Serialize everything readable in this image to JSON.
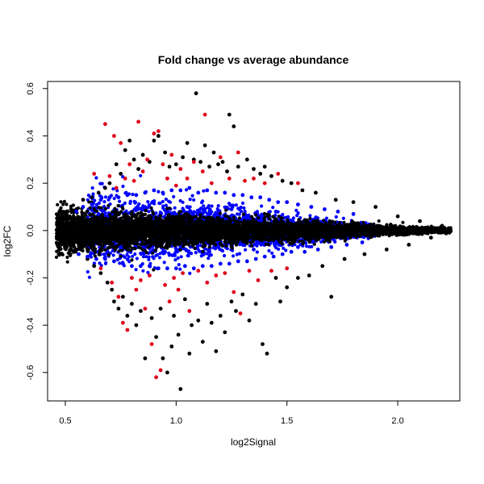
{
  "chart_data": {
    "type": "scatter",
    "title": "Fold change vs average abundance",
    "xlabel": "log2Signal",
    "ylabel": "log2FC",
    "xlim": [
      0.42,
      2.28
    ],
    "ylim": [
      -0.72,
      0.63
    ],
    "xticks": [
      0.5,
      1.0,
      1.5,
      2.0
    ],
    "xtick_labels": [
      "0.5",
      "1.0",
      "1.5",
      "2.0"
    ],
    "yticks": [
      -0.6,
      -0.4,
      -0.2,
      0.0,
      0.2,
      0.4,
      0.6
    ],
    "ytick_labels": [
      "-0.6",
      "-0.4",
      "-0.2",
      "0.0",
      "0.2",
      "0.4",
      "0.6"
    ],
    "grid": false,
    "legend": "none",
    "series": [
      {
        "color": "#000000",
        "points": [
          [
            0.47,
            0.01
          ],
          [
            0.48,
            -0.02
          ],
          [
            0.49,
            0.03
          ],
          [
            0.5,
            -0.04
          ],
          [
            0.52,
            0.06
          ],
          [
            0.54,
            -0.07
          ],
          [
            0.55,
            0.09
          ],
          [
            0.57,
            -0.08
          ],
          [
            0.58,
            0.13
          ],
          [
            0.6,
            -0.12
          ],
          [
            0.62,
            0.14
          ],
          [
            0.63,
            -0.15
          ],
          [
            0.65,
            0.16
          ],
          [
            0.66,
            -0.18
          ],
          [
            0.68,
            0.18
          ],
          [
            0.69,
            -0.22
          ],
          [
            0.7,
            0.2
          ],
          [
            0.71,
            -0.25
          ],
          [
            0.72,
            -0.3
          ],
          [
            0.73,
            0.28
          ],
          [
            0.74,
            -0.33
          ],
          [
            0.75,
            0.24
          ],
          [
            0.76,
            -0.28
          ],
          [
            0.77,
            0.34
          ],
          [
            0.78,
            -0.36
          ],
          [
            0.79,
            0.38
          ],
          [
            0.8,
            -0.31
          ],
          [
            0.81,
            0.3
          ],
          [
            0.82,
            -0.4
          ],
          [
            0.83,
            0.26
          ],
          [
            0.84,
            -0.34
          ],
          [
            0.85,
            0.32
          ],
          [
            0.86,
            -0.54
          ],
          [
            0.88,
            0.29
          ],
          [
            0.89,
            -0.37
          ],
          [
            0.9,
            0.38
          ],
          [
            0.91,
            -0.45
          ],
          [
            0.92,
            0.4
          ],
          [
            0.93,
            -0.33
          ],
          [
            0.94,
            -0.54
          ],
          [
            0.95,
            0.33
          ],
          [
            0.96,
            -0.6
          ],
          [
            0.97,
            0.27
          ],
          [
            0.98,
            -0.49
          ],
          [
            0.99,
            -0.36
          ],
          [
            1.0,
            0.28
          ],
          [
            1.01,
            -0.44
          ],
          [
            1.02,
            -0.67
          ],
          [
            1.03,
            0.31
          ],
          [
            1.04,
            -0.29
          ],
          [
            1.05,
            0.37
          ],
          [
            1.06,
            -0.52
          ],
          [
            1.07,
            -0.4
          ],
          [
            1.08,
            0.3
          ],
          [
            1.09,
            0.58
          ],
          [
            1.1,
            -0.38
          ],
          [
            1.11,
            0.29
          ],
          [
            1.12,
            -0.47
          ],
          [
            1.13,
            0.36
          ],
          [
            1.14,
            -0.31
          ],
          [
            1.15,
            0.27
          ],
          [
            1.16,
            -0.39
          ],
          [
            1.17,
            0.33
          ],
          [
            1.18,
            -0.51
          ],
          [
            1.19,
            0.28
          ],
          [
            1.2,
            -0.36
          ],
          [
            1.21,
            0.29
          ],
          [
            1.22,
            -0.43
          ],
          [
            1.23,
            0.25
          ],
          [
            1.24,
            0.49
          ],
          [
            1.25,
            -0.3
          ],
          [
            1.26,
            0.44
          ],
          [
            1.27,
            -0.34
          ],
          [
            1.28,
            0.27
          ],
          [
            1.3,
            -0.27
          ],
          [
            1.32,
            0.3
          ],
          [
            1.33,
            -0.38
          ],
          [
            1.35,
            0.26
          ],
          [
            1.36,
            -0.31
          ],
          [
            1.38,
            0.24
          ],
          [
            1.39,
            -0.48
          ],
          [
            1.4,
            0.27
          ],
          [
            1.41,
            -0.52
          ],
          [
            1.43,
            0.23
          ],
          [
            1.45,
            -0.2
          ],
          [
            1.47,
            -0.3
          ],
          [
            1.48,
            0.21
          ],
          [
            1.5,
            -0.24
          ],
          [
            1.52,
            0.2
          ],
          [
            1.55,
            -0.2
          ],
          [
            1.57,
            0.17
          ],
          [
            1.6,
            -0.19
          ],
          [
            1.63,
            0.16
          ],
          [
            1.66,
            -0.15
          ],
          [
            1.7,
            -0.28
          ],
          [
            1.72,
            0.13
          ],
          [
            1.76,
            -0.12
          ],
          [
            1.8,
            0.12
          ],
          [
            1.85,
            -0.1
          ],
          [
            1.9,
            0.1
          ],
          [
            1.95,
            -0.08
          ],
          [
            2.0,
            0.06
          ],
          [
            2.05,
            -0.06
          ],
          [
            2.1,
            0.04
          ],
          [
            2.15,
            -0.03
          ],
          [
            2.2,
            0.02
          ],
          [
            2.23,
            0.01
          ]
        ]
      },
      {
        "color": "#0000ff",
        "points": [
          [
            0.55,
            0.08
          ],
          [
            0.56,
            -0.1
          ],
          [
            0.58,
            0.1
          ],
          [
            0.6,
            -0.11
          ],
          [
            0.62,
            0.11
          ],
          [
            0.64,
            -0.12
          ],
          [
            0.66,
            0.13
          ],
          [
            0.68,
            -0.12
          ],
          [
            0.7,
            0.14
          ],
          [
            0.72,
            -0.13
          ],
          [
            0.74,
            0.14
          ],
          [
            0.76,
            -0.14
          ],
          [
            0.78,
            0.15
          ],
          [
            0.8,
            -0.15
          ],
          [
            0.82,
            0.15
          ],
          [
            0.84,
            -0.15
          ],
          [
            0.86,
            0.16
          ],
          [
            0.88,
            -0.15
          ],
          [
            0.9,
            0.17
          ],
          [
            0.92,
            -0.16
          ],
          [
            0.94,
            0.16
          ],
          [
            0.96,
            -0.16
          ],
          [
            0.98,
            0.17
          ],
          [
            1.0,
            -0.16
          ],
          [
            1.02,
            0.17
          ],
          [
            1.04,
            -0.15
          ],
          [
            1.06,
            0.18
          ],
          [
            1.08,
            -0.16
          ],
          [
            1.1,
            0.16
          ],
          [
            1.12,
            -0.15
          ],
          [
            1.14,
            0.17
          ],
          [
            1.16,
            -0.15
          ],
          [
            1.18,
            0.16
          ],
          [
            1.2,
            -0.14
          ],
          [
            1.22,
            0.16
          ],
          [
            1.24,
            -0.14
          ],
          [
            1.26,
            0.15
          ],
          [
            1.28,
            -0.13
          ],
          [
            1.3,
            0.15
          ],
          [
            1.32,
            -0.13
          ],
          [
            1.34,
            0.14
          ],
          [
            1.36,
            -0.12
          ],
          [
            1.38,
            0.14
          ],
          [
            1.4,
            -0.11
          ],
          [
            1.42,
            0.13
          ],
          [
            1.44,
            -0.11
          ],
          [
            1.46,
            0.12
          ],
          [
            1.48,
            -0.1
          ],
          [
            1.5,
            0.12
          ],
          [
            1.52,
            -0.09
          ],
          [
            1.55,
            0.11
          ],
          [
            1.58,
            -0.09
          ],
          [
            1.61,
            0.1
          ],
          [
            1.64,
            -0.08
          ],
          [
            1.67,
            0.09
          ],
          [
            1.7,
            -0.07
          ],
          [
            1.73,
            0.08
          ],
          [
            1.77,
            -0.06
          ],
          [
            1.8,
            0.07
          ],
          [
            1.84,
            -0.05
          ],
          [
            0.65,
            0.07
          ],
          [
            0.75,
            -0.07
          ],
          [
            0.85,
            0.09
          ],
          [
            0.95,
            -0.09
          ],
          [
            1.05,
            0.1
          ],
          [
            1.15,
            -0.09
          ],
          [
            1.25,
            0.09
          ],
          [
            1.35,
            -0.08
          ],
          [
            1.45,
            0.08
          ],
          [
            1.55,
            -0.07
          ]
        ]
      },
      {
        "color": "#e0001b",
        "points": [
          [
            0.63,
            0.24
          ],
          [
            0.66,
            -0.16
          ],
          [
            0.68,
            0.45
          ],
          [
            0.7,
            0.23
          ],
          [
            0.71,
            -0.22
          ],
          [
            0.72,
            0.4
          ],
          [
            0.73,
            0.18
          ],
          [
            0.74,
            -0.28
          ],
          [
            0.75,
            0.37
          ],
          [
            0.76,
            -0.39
          ],
          [
            0.77,
            0.22
          ],
          [
            0.78,
            -0.42
          ],
          [
            0.79,
            0.28
          ],
          [
            0.8,
            -0.2
          ],
          [
            0.81,
            0.21
          ],
          [
            0.82,
            -0.25
          ],
          [
            0.83,
            0.46
          ],
          [
            0.84,
            -0.21
          ],
          [
            0.85,
            0.25
          ],
          [
            0.86,
            -0.33
          ],
          [
            0.87,
            0.3
          ],
          [
            0.88,
            -0.19
          ],
          [
            0.89,
            -0.48
          ],
          [
            0.9,
            0.41
          ],
          [
            0.91,
            -0.62
          ],
          [
            0.92,
            0.42
          ],
          [
            0.93,
            -0.59
          ],
          [
            0.94,
            0.28
          ],
          [
            0.95,
            -0.23
          ],
          [
            0.96,
            0.22
          ],
          [
            0.97,
            -0.3
          ],
          [
            0.98,
            0.32
          ],
          [
            0.99,
            -0.2
          ],
          [
            1.0,
            0.19
          ],
          [
            1.01,
            -0.25
          ],
          [
            1.02,
            0.26
          ],
          [
            1.03,
            -0.18
          ],
          [
            1.05,
            0.22
          ],
          [
            1.06,
            -0.34
          ],
          [
            1.08,
            0.29
          ],
          [
            1.1,
            -0.17
          ],
          [
            1.12,
            0.25
          ],
          [
            1.13,
            0.49
          ],
          [
            1.14,
            -0.22
          ],
          [
            1.16,
            0.2
          ],
          [
            1.18,
            -0.19
          ],
          [
            1.2,
            0.31
          ],
          [
            1.22,
            -0.18
          ],
          [
            1.24,
            0.22
          ],
          [
            1.26,
            -0.26
          ],
          [
            1.28,
            0.33
          ],
          [
            1.29,
            -0.35
          ],
          [
            1.31,
            0.21
          ],
          [
            1.33,
            -0.17
          ],
          [
            1.35,
            0.22
          ],
          [
            1.37,
            -0.21
          ],
          [
            1.4,
            0.2
          ],
          [
            1.43,
            -0.17
          ],
          [
            1.46,
            0.24
          ],
          [
            1.5,
            -0.16
          ],
          [
            1.55,
            0.2
          ]
        ]
      }
    ]
  }
}
